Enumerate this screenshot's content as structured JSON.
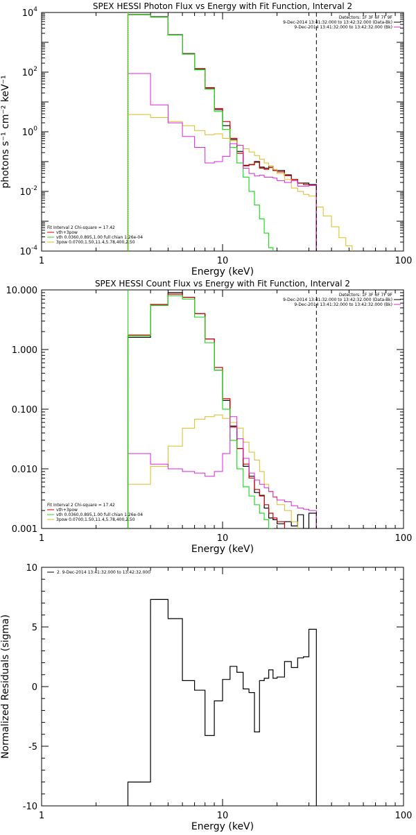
{
  "colors": {
    "data": "#000000",
    "total": "#cc0000",
    "thermal": "#22dd22",
    "nonthermal": "#ddbb22",
    "background": "#dd22dd"
  },
  "chart_data": [
    {
      "type": "line",
      "title": "SPEX HESSI Photon Flux vs Energy with Fit Function, Interval 2",
      "xlabel": "Energy (keV)",
      "ylabel": "photons s⁻¹ cm⁻² keV⁻¹",
      "xscale": "log",
      "yscale": "log",
      "xlim": [
        1,
        100
      ],
      "ylim": [
        0.0001,
        10000
      ],
      "xticks": [
        {
          "v": 1,
          "label": "1"
        },
        {
          "v": 10,
          "label": "10"
        },
        {
          "v": 100,
          "label": "100"
        }
      ],
      "yticks": [
        {
          "v": 0.0001,
          "base": "10",
          "exp": "-4"
        },
        {
          "v": 0.01,
          "base": "10",
          "exp": "-2"
        },
        {
          "v": 1,
          "base": "10",
          "exp": "0"
        },
        {
          "v": 100,
          "base": "10",
          "exp": "2"
        },
        {
          "v": 10000,
          "base": "10",
          "exp": "4"
        }
      ],
      "edges": [
        3,
        4,
        5,
        6,
        7,
        8,
        9,
        10,
        11,
        12,
        13,
        14,
        15,
        16,
        17,
        18,
        19,
        20,
        22,
        24,
        26,
        28,
        30,
        33,
        36,
        40,
        44,
        48,
        52
      ],
      "series": [
        {
          "color": "data",
          "lw": 1.2,
          "values": [
            8500,
            7200,
            1800,
            420,
            130,
            30,
            5.5,
            1.6,
            0.55,
            0.22,
            0.075,
            0.08,
            0.1,
            0.065,
            0.06,
            0.07,
            0.05,
            0.05,
            0.036,
            0.025,
            0.019,
            0.019,
            0.017
          ]
        },
        {
          "color": "total",
          "lw": 1.2,
          "values": [
            8400,
            7000,
            1750,
            410,
            125,
            29,
            6.0,
            2.2,
            0.6,
            0.19,
            0.072,
            0.078,
            0.095,
            0.06,
            0.055,
            0.063,
            0.05,
            0.045,
            0.034,
            0.025,
            0.019,
            0.017,
            0.016
          ]
        },
        {
          "color": "thermal",
          "lw": 1.2,
          "values": [
            8400,
            7000,
            1750,
            400,
            120,
            27,
            4.8,
            1.2,
            0.3,
            0.09,
            0.03,
            0.01,
            0.0035,
            0.0012,
            0.0004,
            0.00013,
            4e-05
          ]
        },
        {
          "color": "nonthermal",
          "lw": 1.0,
          "values": [
            3.8,
            3.0,
            2.2,
            1.6,
            1.1,
            0.8,
            0.85,
            0.6,
            0.5,
            0.35,
            0.27,
            0.21,
            0.16,
            0.12,
            0.09,
            0.07,
            0.055,
            0.04,
            0.025,
            0.013,
            0.01,
            0.008,
            0.007,
            0.003,
            0.0015,
            0.00065,
            0.00028,
            0.00015
          ]
        },
        {
          "color": "background",
          "lw": 1.0,
          "values": [
            90,
            8,
            2,
            0.7,
            0.3,
            0.09,
            0.1,
            0.15,
            0.4,
            0.35,
            0.06,
            0.04,
            0.033,
            0.035,
            0.03,
            0.03,
            0.028,
            0.023,
            0.02,
            0.023,
            0.015,
            0.015,
            0.016
          ]
        }
      ],
      "vlines": [
        {
          "x": 3,
          "color": "thermal",
          "dash": ""
        },
        {
          "x": 3,
          "color": "nonthermal",
          "dash": "1,2"
        },
        {
          "x": 33,
          "color": "data",
          "dash": "6,4"
        }
      ],
      "legend_top": {
        "lines": [
          {
            "text": "Detectors: 1F 3F 6F 7F 9F",
            "color": null
          },
          {
            "text": "9-Dec-2014 13:41:32.000 to 13:42:32.000 (Data-Bk)",
            "color": "data"
          },
          {
            "text": "9-Dec-2014 13:41:32.000 to 13:42:32.000 (Bk)",
            "color": "background"
          }
        ]
      },
      "legend_bottom": {
        "header": "Fit Interval 2   Chi-square = 17.42",
        "lines": [
          {
            "text": "vth+3pow",
            "color": "total"
          },
          {
            "text": "vth 0.0360,0.895,1.00  full chian 1.26e-04",
            "color": "thermal"
          },
          {
            "text": "3pow 0.0700,1.50,11.4,5.78,400,2.50",
            "color": "nonthermal"
          }
        ]
      }
    },
    {
      "type": "line",
      "title": "SPEX HESSI Count Flux vs Energy with Fit Function, Interval 2",
      "xlabel": "Energy (keV)",
      "ylabel": "",
      "xscale": "log",
      "yscale": "log",
      "xlim": [
        1,
        100
      ],
      "ylim": [
        0.001,
        10
      ],
      "xticks": [
        {
          "v": 1,
          "label": "1"
        },
        {
          "v": 10,
          "label": "10"
        },
        {
          "v": 100,
          "label": "100"
        }
      ],
      "yticks": [
        {
          "v": 0.001,
          "label": "0.001"
        },
        {
          "v": 0.01,
          "label": "0.010"
        },
        {
          "v": 0.1,
          "label": "0.100"
        },
        {
          "v": 1,
          "label": "1.000"
        },
        {
          "v": 10,
          "label": "10.000"
        }
      ],
      "edges": [
        3,
        4,
        5,
        6,
        7,
        8,
        9,
        10,
        11,
        12,
        13,
        14,
        15,
        16,
        17,
        18,
        19,
        20,
        22,
        24,
        26,
        28,
        30,
        33
      ],
      "series": [
        {
          "color": "data",
          "lw": 1.2,
          "values": [
            1.6,
            5.5,
            9.0,
            7.5,
            4.0,
            1.5,
            0.45,
            0.14,
            0.052,
            0.022,
            0.011,
            0.0075,
            0.004,
            0.0036,
            0.0022,
            0.0015,
            0.0014,
            0.0012,
            0.0013,
            0.0011,
            0.0017,
            0.001,
            0.0018
          ]
        },
        {
          "color": "total",
          "lw": 1.2,
          "values": [
            1.75,
            5.7,
            8.5,
            7.5,
            4.0,
            1.5,
            0.5,
            0.15,
            0.05,
            0.022,
            0.012,
            0.007,
            0.0045,
            0.0035,
            0.0025,
            0.0018,
            0.0015,
            0.0013
          ]
        },
        {
          "color": "thermal",
          "lw": 1.2,
          "values": [
            1.7,
            5.5,
            8.0,
            7.0,
            3.5,
            1.3,
            0.45,
            0.1,
            0.03,
            0.01,
            0.005,
            0.0035,
            0.0025,
            0.0018,
            0.0014,
            0.001
          ]
        },
        {
          "color": "nonthermal",
          "lw": 1.0,
          "values": [
            0.0055,
            0.011,
            0.024,
            0.048,
            0.068,
            0.075,
            0.08,
            0.07,
            0.06,
            0.048,
            0.028,
            0.019,
            0.014,
            0.009,
            0.0055,
            0.0041,
            0.0033,
            0.0025,
            0.002,
            0.0013,
            0.0009
          ]
        },
        {
          "color": "background",
          "lw": 1.0,
          "values": [
            0.018,
            0.012,
            0.01,
            0.009,
            0.0085,
            0.0075,
            0.009,
            0.018,
            0.075,
            0.032,
            0.015,
            0.0085,
            0.0065,
            0.0055,
            0.0048,
            0.0042,
            0.0034,
            0.003,
            0.0028,
            0.0024,
            0.0022,
            0.0021,
            0.002
          ]
        }
      ],
      "vlines": [
        {
          "x": 3,
          "color": "data",
          "dash": "1,2"
        },
        {
          "x": 3,
          "color": "thermal",
          "dash": ""
        },
        {
          "x": 33,
          "color": "data",
          "dash": "6,4"
        }
      ],
      "legend_top": {
        "lines": [
          {
            "text": "Detectors: 1F 3F 6F 7F 9F",
            "color": null
          },
          {
            "text": "9-Dec-2014 13:41:32.000 to 13:42:32.000 (Data-Bk)",
            "color": "data"
          },
          {
            "text": "9-Dec-2014 13:41:32.000 to 13:42:32.000 (Bk)",
            "color": "background"
          }
        ]
      },
      "legend_bottom": {
        "header": "Fit Interval 2   Chi-square = 17.42",
        "lines": [
          {
            "text": "vth+3pow",
            "color": "total"
          },
          {
            "text": "vth 0.0360,0.895,1.00  full chian 1.26e-04",
            "color": "thermal"
          },
          {
            "text": "3pow 0.0700,1.50,11.4,5.78,400,2.50",
            "color": "nonthermal"
          }
        ]
      }
    },
    {
      "type": "line",
      "title": "",
      "xlabel": "Energy (keV)",
      "ylabel": "Normalized Residuals (sigma)",
      "xscale": "log",
      "yscale": "linear",
      "xlim": [
        1,
        100
      ],
      "ylim": [
        -10,
        10
      ],
      "xticks": [
        {
          "v": 1,
          "label": "1"
        },
        {
          "v": 10,
          "label": "10"
        },
        {
          "v": 100,
          "label": "100"
        }
      ],
      "yticks": [
        {
          "v": -10,
          "label": "-10"
        },
        {
          "v": -5,
          "label": "-5"
        },
        {
          "v": 0,
          "label": "0"
        },
        {
          "v": 5,
          "label": "5"
        },
        {
          "v": 10,
          "label": "10"
        }
      ],
      "edges": [
        3,
        4,
        5,
        6,
        7,
        8,
        9,
        10,
        11,
        12,
        13,
        14,
        15,
        16,
        17,
        18,
        19,
        20,
        22,
        24,
        26,
        28,
        30,
        33
      ],
      "series": [
        {
          "color": "data",
          "lw": 1.2,
          "values": [
            -8,
            7.3,
            5.7,
            0.5,
            -0.3,
            -4.1,
            -1.2,
            0.6,
            1.7,
            1.2,
            -0.2,
            -0.5,
            -3.8,
            0.5,
            0.7,
            1.4,
            0.7,
            0.8,
            2.1,
            1.6,
            2.4,
            2.5,
            4.8
          ],
          "drop_to_bottom": true
        }
      ],
      "vlines": [],
      "legend_top": {
        "lines": [
          {
            "text": "2. 9-Dec-2014 13:41:32.000 to 13:42:32.000",
            "color": "data"
          }
        ]
      },
      "legend_bottom": null
    }
  ]
}
